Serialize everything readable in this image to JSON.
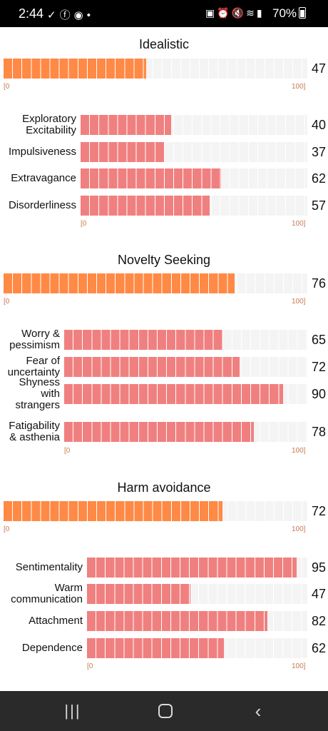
{
  "status_bar": {
    "time": "2:44",
    "left_icons": [
      "check-icon",
      "facebook-icon",
      "messenger-icon",
      "dot-icon"
    ],
    "right_icons": [
      "battery-saver-icon",
      "alarm-icon",
      "mute-icon",
      "wifi-icon",
      "signal-icon"
    ],
    "battery": "70%"
  },
  "scale_min": "[0",
  "scale_max": "100]",
  "colors": {
    "main_bar": "#ff8a45",
    "sub_bar": "#f08080",
    "track": "#f4f4f4",
    "scale_text": "#c77a4f"
  },
  "sections": [
    {
      "title": "Idealistic",
      "main": {
        "value": 47,
        "display": "47"
      },
      "rows": [
        {
          "label": "Exploratory\nExcitability",
          "value": 40,
          "display": "40"
        },
        {
          "label": "Impulsiveness",
          "value": 37,
          "display": "37"
        },
        {
          "label": "Extravagance",
          "value": 62,
          "display": "62"
        },
        {
          "label": "Disorderliness",
          "value": 57,
          "display": "57"
        }
      ]
    },
    {
      "title": "Novelty Seeking",
      "main": {
        "value": 76,
        "display": "76"
      },
      "rows": [
        {
          "label": "Worry &\npessimism",
          "value": 65,
          "display": "65"
        },
        {
          "label": "Fear of\nuncertainty",
          "value": 72,
          "display": "72"
        },
        {
          "label": "Shyness\nwith\nstrangers",
          "value": 90,
          "display": "90"
        },
        {
          "label": "Fatigability\n& asthenia",
          "value": 78,
          "display": "78"
        }
      ]
    },
    {
      "title": "Harm avoidance",
      "main": {
        "value": 72,
        "display": "72"
      },
      "rows": [
        {
          "label": "Sentimentality",
          "value": 95,
          "display": "95"
        },
        {
          "label": "Warm\ncommunication",
          "value": 47,
          "display": "47"
        },
        {
          "label": "Attachment",
          "value": 82,
          "display": "82"
        },
        {
          "label": "Dependence",
          "value": 62,
          "display": "62"
        }
      ]
    }
  ],
  "nav_bar": {
    "recent": "recent-apps-icon",
    "home": "home-icon",
    "back": "back-icon"
  }
}
